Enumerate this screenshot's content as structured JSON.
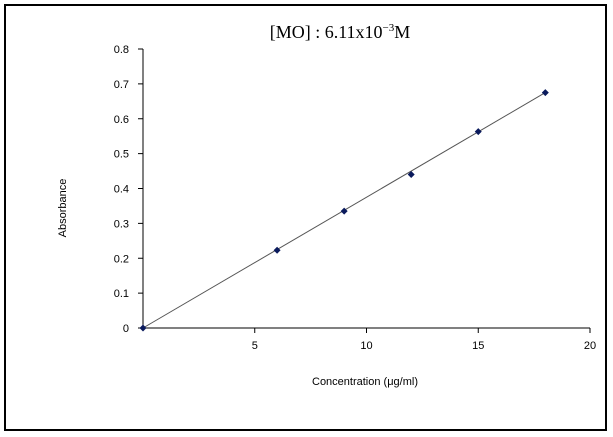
{
  "chart_data": {
    "type": "scatter",
    "title_main": "[MO] : 6.11x10",
    "title_exp": "−3",
    "title_unit": "M",
    "xlabel": "Concentration (μg/ml)",
    "ylabel": "Absorbance",
    "xlim": [
      0,
      20
    ],
    "ylim": [
      0,
      0.8
    ],
    "xticks": [
      "5",
      "10",
      "15",
      "20"
    ],
    "yticks": [
      "0",
      "0.1",
      "0.2",
      "0.3",
      "0.4",
      "0.5",
      "0.6",
      "0.7",
      "0.8"
    ],
    "grid": false,
    "legend": "none",
    "series": [
      {
        "x": [
          0,
          6,
          9,
          12,
          15,
          18
        ],
        "y": [
          0,
          0.223,
          0.335,
          0.44,
          0.563,
          0.675
        ]
      }
    ],
    "trendline": {
      "x": [
        0,
        18
      ],
      "y": [
        0,
        0.675
      ]
    },
    "colors": {
      "marker": "#0a1a5c",
      "line": "#555555",
      "axis": "#000000"
    }
  }
}
